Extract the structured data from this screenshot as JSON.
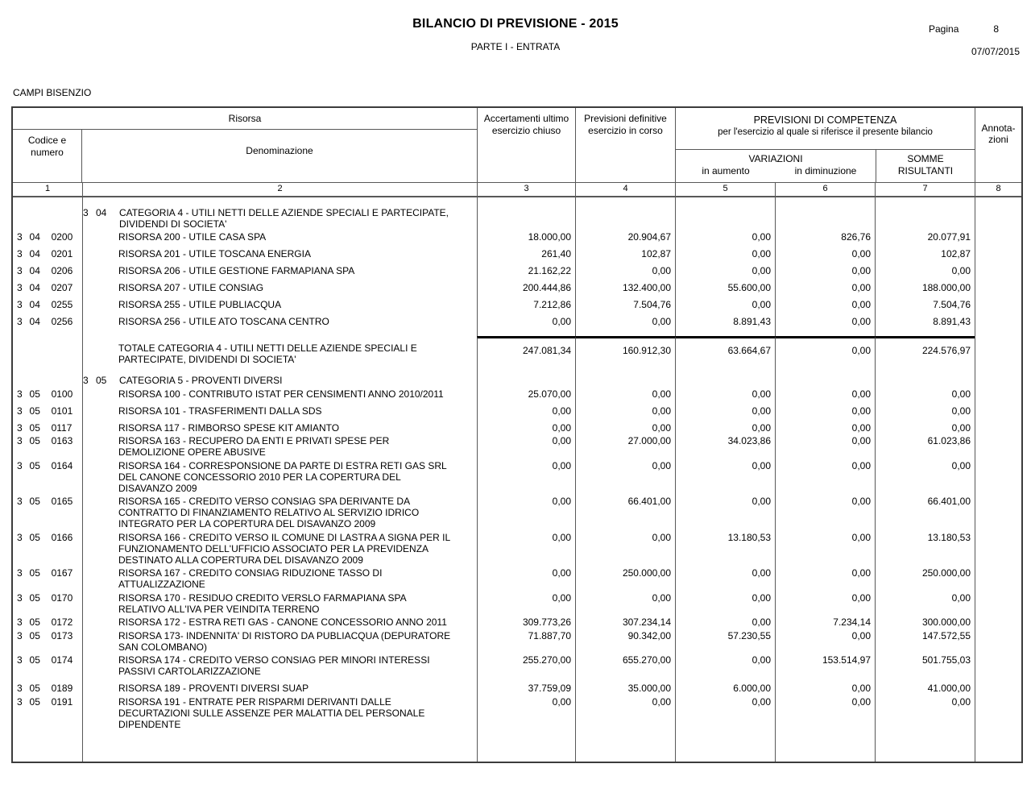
{
  "header": {
    "title": "BILANCIO DI PREVISIONE - 2015",
    "subtitle": "PARTE I - ENTRATA",
    "page_label": "Pagina",
    "page_number": "8",
    "date": "07/07/2015",
    "entity": "CAMPI BISENZIO"
  },
  "table": {
    "headers": {
      "risorsa": "Risorsa",
      "codice": "Codice e numero",
      "denominazione": "Denominazione",
      "accertamenti": "Accertamenti ultimo esercizio chiuso",
      "previsioni": "Previsioni definitive esercizio in corso",
      "competenza_title": "PREVISIONI DI COMPETENZA",
      "competenza_sub": "per l'esercizio al quale si riferisce il presente bilancio",
      "variazioni": "VARIAZIONI",
      "in_aumento": "in aumento",
      "in_diminuzione": "in diminuzione",
      "somme_line1": "SOMME",
      "somme_line2": "RISULTANTI",
      "annotazioni": [
        "Annota-",
        "zioni"
      ]
    },
    "col_numbers": [
      "1",
      "2",
      "3",
      "4",
      "5",
      "6",
      "7",
      "8"
    ],
    "rows": [
      {
        "type": "category",
        "prefix": [
          "3",
          "04"
        ],
        "text": "CATEGORIA 4 - UTILI NETTI DELLE AZIENDE SPECIALI E PARTECIPATE, DIVIDENDI DI SOCIETA'"
      },
      {
        "type": "risorsa",
        "classes": "tight",
        "code": [
          "3",
          "04",
          "0200"
        ],
        "text": "RISORSA 200 - UTILE CASA SPA",
        "values": [
          "18.000,00",
          "20.904,67",
          "0,00",
          "826,76",
          "20.077,91"
        ]
      },
      {
        "type": "risorsa",
        "classes": "",
        "code": [
          "3",
          "04",
          "0201"
        ],
        "text": "RISORSA 201 - UTILE TOSCANA ENERGIA",
        "values": [
          "261,40",
          "102,87",
          "0,00",
          "0,00",
          "102,87"
        ]
      },
      {
        "type": "risorsa",
        "classes": "",
        "code": [
          "3",
          "04",
          "0206"
        ],
        "text": "RISORSA 206 - UTILE GESTIONE FARMAPIANA SPA",
        "values": [
          "21.162,22",
          "0,00",
          "0,00",
          "0,00",
          "0,00"
        ]
      },
      {
        "type": "risorsa",
        "classes": "",
        "code": [
          "3",
          "04",
          "0207"
        ],
        "text": "RISORSA 207 - UTILE CONSIAG",
        "values": [
          "200.444,86",
          "132.400,00",
          "55.600,00",
          "0,00",
          "188.000,00"
        ]
      },
      {
        "type": "risorsa",
        "classes": "",
        "code": [
          "3",
          "04",
          "0255"
        ],
        "text": "RISORSA 255 - UTILE PUBLIACQUA",
        "values": [
          "7.212,86",
          "7.504,76",
          "0,00",
          "0,00",
          "7.504,76"
        ]
      },
      {
        "type": "risorsa",
        "classes": "gap-after",
        "code": [
          "3",
          "04",
          "0256"
        ],
        "text": "RISORSA 256 - UTILE ATO TOSCANA CENTRO",
        "values": [
          "0,00",
          "0,00",
          "8.891,43",
          "0,00",
          "8.891,43"
        ]
      },
      {
        "type": "total",
        "classes": "",
        "text": "TOTALE CATEGORIA 4 - UTILI NETTI DELLE AZIENDE SPECIALI E PARTECIPATE, DIVIDENDI DI SOCIETA'",
        "values": [
          "247.081,34",
          "160.912,30",
          "63.664,67",
          "0,00",
          "224.576,97"
        ]
      },
      {
        "type": "category",
        "prefix": [
          "3",
          "05"
        ],
        "text": "CATEGORIA 5 - PROVENTI DIVERSI"
      },
      {
        "type": "risorsa",
        "classes": "ml",
        "code": [
          "3",
          "05",
          "0100"
        ],
        "text": "RISORSA 100 - CONTRIBUTO ISTAT PER CENSIMENTI ANNO 2010/2011",
        "values": [
          "25.070,00",
          "0,00",
          "0,00",
          "0,00",
          "0,00"
        ]
      },
      {
        "type": "risorsa",
        "classes": "",
        "code": [
          "3",
          "05",
          "0101"
        ],
        "text": "RISORSA 101 - TRASFERIMENTI DALLA SDS",
        "values": [
          "0,00",
          "0,00",
          "0,00",
          "0,00",
          "0,00"
        ]
      },
      {
        "type": "risorsa",
        "classes": "",
        "code": [
          "3",
          "05",
          "0117"
        ],
        "text": "RISORSA 117 - RIMBORSO SPESE KIT AMIANTO",
        "values": [
          "0,00",
          "0,00",
          "0,00",
          "0,00",
          "0,00"
        ]
      },
      {
        "type": "risorsa",
        "classes": "ml",
        "code": [
          "3",
          "05",
          "0163"
        ],
        "text": "RISORSA 163 - RECUPERO DA ENTI E PRIVATI SPESE PER DEMOLIZIONE OPERE ABUSIVE",
        "values": [
          "0,00",
          "27.000,00",
          "34.023,86",
          "0,00",
          "61.023,86"
        ]
      },
      {
        "type": "risorsa",
        "classes": "ml",
        "code": [
          "3",
          "05",
          "0164"
        ],
        "text": "RISORSA 164 - CORRESPONSIONE DA PARTE DI ESTRA RETI GAS SRL DEL CANONE CONCESSORIO 2010 PER LA COPERTURA DEL DISAVANZO 2009",
        "values": [
          "0,00",
          "0,00",
          "0,00",
          "0,00",
          "0,00"
        ]
      },
      {
        "type": "risorsa",
        "classes": "ml",
        "code": [
          "3",
          "05",
          "0165"
        ],
        "text": "RISORSA 165 - CREDITO VERSO CONSIAG SPA DERIVANTE DA CONTRATTO DI FINANZIAMENTO RELATIVO AL SERVIZIO IDRICO INTEGRATO PER LA COPERTURA DEL DISAVANZO 2009",
        "values": [
          "0,00",
          "66.401,00",
          "0,00",
          "0,00",
          "66.401,00"
        ]
      },
      {
        "type": "risorsa",
        "classes": "ml",
        "code": [
          "3",
          "05",
          "0166"
        ],
        "text": "RISORSA 166 - CREDITO VERSO IL COMUNE DI LASTRA A SIGNA PER IL FUNZIONAMENTO DELL'UFFICIO ASSOCIATO PER LA PREVIDENZA DESTINATO ALLA COPERTURA DEL DISAVANZO 2009",
        "values": [
          "0,00",
          "0,00",
          "13.180,53",
          "0,00",
          "13.180,53"
        ]
      },
      {
        "type": "risorsa",
        "classes": "ml",
        "code": [
          "3",
          "05",
          "0167"
        ],
        "text": "RISORSA 167 - CREDITO CONSIAG RIDUZIONE TASSO DI ATTUALIZZAZIONE",
        "values": [
          "0,00",
          "250.000,00",
          "0,00",
          "0,00",
          "250.000,00"
        ]
      },
      {
        "type": "risorsa",
        "classes": "ml",
        "code": [
          "3",
          "05",
          "0170"
        ],
        "text": "RISORSA 170 - RESIDUO CREDITO VERSLO FARMAPIANA SPA RELATIVO ALL'IVA PER VEINDITA TERRENO",
        "values": [
          "0,00",
          "0,00",
          "0,00",
          "0,00",
          "0,00"
        ]
      },
      {
        "type": "risorsa",
        "classes": "ml",
        "code": [
          "3",
          "05",
          "0172"
        ],
        "text": "RISORSA 172 - ESTRA RETI GAS - CANONE CONCESSORIO ANNO 2011",
        "values": [
          "309.773,26",
          "307.234,14",
          "0,00",
          "7.234,14",
          "300.000,00"
        ]
      },
      {
        "type": "risorsa",
        "classes": "ml",
        "code": [
          "3",
          "05",
          "0173"
        ],
        "text": "RISORSA 173- INDENNITA' DI RISTORO DA PUBLIACQUA (DEPURATORE SAN COLOMBANO)",
        "values": [
          "71.887,70",
          "90.342,00",
          "57.230,55",
          "0,00",
          "147.572,55"
        ]
      },
      {
        "type": "risorsa",
        "classes": "ml",
        "code": [
          "3",
          "05",
          "0174"
        ],
        "text": "RISORSA 174 - CREDITO VERSO CONSIAG PER MINORI INTERESSI PASSIVI CARTOLARIZZAZIONE",
        "values": [
          "255.270,00",
          "655.270,00",
          "0,00",
          "153.514,97",
          "501.755,03"
        ]
      },
      {
        "type": "risorsa",
        "classes": "",
        "code": [
          "3",
          "05",
          "0189"
        ],
        "text": "RISORSA 189 - PROVENTI DIVERSI SUAP",
        "values": [
          "37.759,09",
          "35.000,00",
          "6.000,00",
          "0,00",
          "41.000,00"
        ]
      },
      {
        "type": "risorsa",
        "classes": "ml",
        "code": [
          "3",
          "05",
          "0191"
        ],
        "text": "RISORSA 191 - ENTRATE PER RISPARMI DERIVANTI DALLE DECURTAZIONI SULLE ASSENZE PER MALATTIA DEL PERSONALE DIPENDENTE",
        "values": [
          "0,00",
          "0,00",
          "0,00",
          "0,00",
          "0,00"
        ]
      }
    ]
  }
}
